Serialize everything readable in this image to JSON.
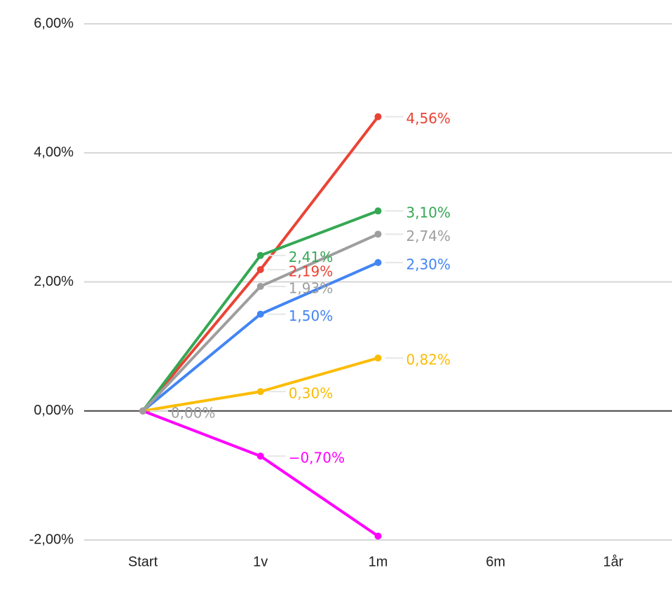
{
  "chart_data": {
    "type": "line",
    "categories": [
      "Start",
      "1v",
      "1m",
      "6m",
      "1år"
    ],
    "series": [
      {
        "color": "#ea4335",
        "values": [
          0,
          2.19,
          4.56,
          null,
          null
        ],
        "value_labels": [
          null,
          "2,19%",
          "4,56%",
          null,
          null
        ]
      },
      {
        "color": "#34a853",
        "values": [
          0,
          2.41,
          3.1,
          null,
          null
        ],
        "value_labels": [
          null,
          "2,41%",
          "3,10%",
          null,
          null
        ]
      },
      {
        "color": "#4285f4",
        "values": [
          0,
          1.5,
          2.3,
          null,
          null
        ],
        "value_labels": [
          null,
          "1,50%",
          "2,30%",
          null,
          null
        ]
      },
      {
        "color": "#fbbc04",
        "values": [
          0,
          0.3,
          0.82,
          null,
          null
        ],
        "value_labels": [
          null,
          "0,30%",
          "0,82%",
          null,
          null
        ]
      },
      {
        "color": "#ff00ff",
        "values": [
          0,
          -0.7,
          -1.94,
          null,
          null
        ],
        "value_labels": [
          null,
          "−0,70%",
          null,
          null,
          null
        ]
      },
      {
        "color": "#9e9e9e",
        "values": [
          0,
          1.93,
          2.74,
          null,
          null
        ],
        "value_labels": [
          "0,00%",
          "1,93%",
          "2,74%",
          null,
          null
        ]
      }
    ],
    "ylim": [
      -2,
      6
    ],
    "yticks": [
      {
        "value": -2,
        "label": "-2,00%"
      },
      {
        "value": 0,
        "label": "0,00%"
      },
      {
        "value": 2,
        "label": "2,00%"
      },
      {
        "value": 4,
        "label": "4,00%"
      },
      {
        "value": 6,
        "label": "6,00%"
      }
    ],
    "grid": true
  }
}
